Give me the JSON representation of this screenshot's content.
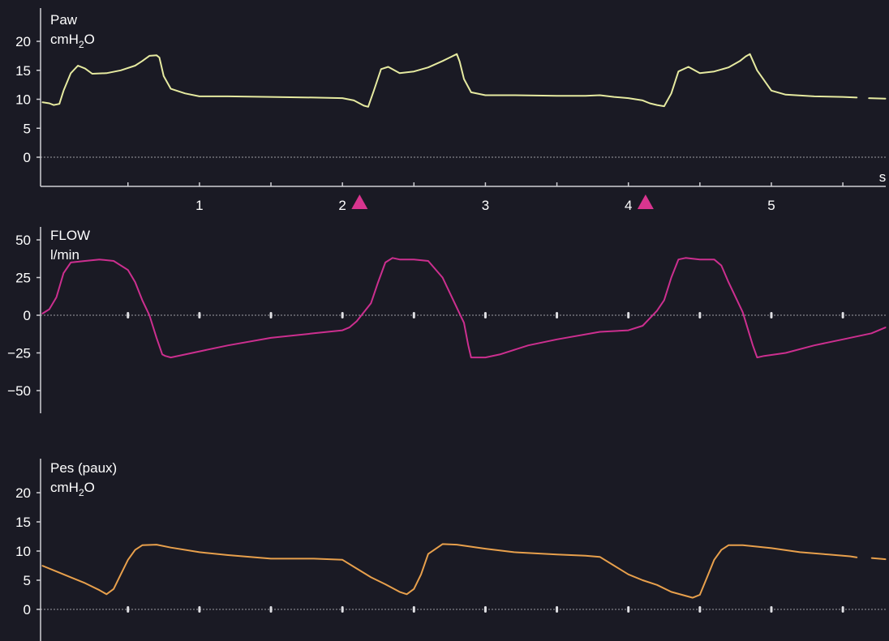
{
  "colors": {
    "background": "#1a1a24",
    "axis": "#cfcfd4",
    "paw": "#e6eaa0",
    "flow": "#cc2f8f",
    "pes": "#e8a04c",
    "marker": "#d9358f",
    "zero_line": "#bfbfc4"
  },
  "chart_data": [
    {
      "type": "line",
      "title_line1": "Paw",
      "unit_prefix": "cmH",
      "unit_sub": "2",
      "unit_suffix": "O",
      "ylim": [
        -5,
        22
      ],
      "yticks": [
        0,
        5,
        10,
        15,
        20
      ],
      "ytick_labels": [
        "0",
        "5",
        "10",
        "15",
        "20"
      ],
      "xlim": [
        -0.1,
        5.8
      ],
      "xticks": [
        1,
        2,
        3,
        4,
        5
      ],
      "xtick_labels": [
        "1",
        "2",
        "3",
        "4",
        "5"
      ],
      "xunit": "s",
      "markers_x": [
        2.12,
        4.12
      ],
      "series": [
        {
          "color_key": "paw",
          "x": [
            -0.1,
            -0.05,
            -0.02,
            0.02,
            0.05,
            0.1,
            0.15,
            0.2,
            0.25,
            0.35,
            0.45,
            0.55,
            0.6,
            0.65,
            0.7,
            0.72,
            0.75,
            0.8,
            0.9,
            1.0,
            1.2,
            1.5,
            1.8,
            2.0,
            2.08,
            2.15,
            2.18,
            2.22,
            2.27,
            2.32,
            2.4,
            2.5,
            2.6,
            2.7,
            2.75,
            2.8,
            2.82,
            2.85,
            2.9,
            3.0,
            3.2,
            3.5,
            3.7,
            3.8,
            3.9,
            4.0,
            4.1,
            4.15,
            4.2,
            4.25,
            4.3,
            4.35,
            4.42,
            4.5,
            4.6,
            4.7,
            4.78,
            4.82,
            4.85,
            4.9,
            5.0,
            5.1,
            5.3,
            5.5,
            5.6,
            5.65,
            5.68,
            5.8
          ],
          "y": [
            9.5,
            9.3,
            9.0,
            9.2,
            11.5,
            14.5,
            15.8,
            15.3,
            14.4,
            14.5,
            15.0,
            15.8,
            16.6,
            17.5,
            17.6,
            17.2,
            14.0,
            11.8,
            11.0,
            10.5,
            10.5,
            10.4,
            10.3,
            10.2,
            9.8,
            8.9,
            8.7,
            11.5,
            15.2,
            15.6,
            14.5,
            14.8,
            15.5,
            16.6,
            17.2,
            17.8,
            16.5,
            13.5,
            11.2,
            10.7,
            10.7,
            10.6,
            10.6,
            10.7,
            10.4,
            10.2,
            9.8,
            9.3,
            9.0,
            8.8,
            11.0,
            14.8,
            15.6,
            14.5,
            14.8,
            15.5,
            16.6,
            17.4,
            17.8,
            15.0,
            11.5,
            10.8,
            10.5,
            10.4,
            10.3,
            null,
            10.2,
            10.1
          ]
        }
      ]
    },
    {
      "type": "line",
      "title_line1": "FLOW",
      "unit": "l/min",
      "ylim": [
        -60,
        52
      ],
      "yticks": [
        -50,
        -25,
        0,
        25,
        50
      ],
      "ytick_labels": [
        "−50",
        "−25",
        "0",
        "25",
        "50"
      ],
      "xlim": [
        -0.1,
        5.8
      ],
      "xticks": [
        0.5,
        1,
        1.5,
        2,
        2.5,
        3,
        3.5,
        4,
        4.5,
        5,
        5.5
      ],
      "series": [
        {
          "color_key": "flow",
          "x": [
            -0.1,
            -0.05,
            0.0,
            0.05,
            0.1,
            0.2,
            0.3,
            0.4,
            0.5,
            0.55,
            0.6,
            0.65,
            0.7,
            0.74,
            0.76,
            0.8,
            0.9,
            1.0,
            1.2,
            1.5,
            1.8,
            2.0,
            2.05,
            2.1,
            2.15,
            2.2,
            2.25,
            2.3,
            2.35,
            2.4,
            2.5,
            2.6,
            2.7,
            2.75,
            2.8,
            2.85,
            2.88,
            2.9,
            3.0,
            3.1,
            3.3,
            3.5,
            3.8,
            4.0,
            4.1,
            4.15,
            4.2,
            4.25,
            4.3,
            4.35,
            4.4,
            4.5,
            4.6,
            4.65,
            4.7,
            4.75,
            4.8,
            4.87,
            4.9,
            4.95,
            5.1,
            5.3,
            5.5,
            5.7,
            5.8
          ],
          "y": [
            1,
            4,
            12,
            28,
            35,
            36,
            37,
            36,
            30,
            22,
            10,
            0,
            -15,
            -26,
            -27,
            -28,
            -26,
            -24,
            -20,
            -15,
            -12,
            -10,
            -8,
            -4,
            2,
            8,
            22,
            35,
            38,
            37,
            37,
            36,
            25,
            15,
            5,
            -5,
            -20,
            -28,
            -28,
            -26,
            -20,
            -16,
            -11,
            -10,
            -7,
            -2,
            3,
            10,
            25,
            37,
            38,
            37,
            37,
            33,
            22,
            12,
            2,
            -20,
            -28,
            -27,
            -25,
            -20,
            -16,
            -12,
            -8
          ]
        }
      ]
    },
    {
      "type": "line",
      "title_line1": "Pes (paux)",
      "unit_prefix": "cmH",
      "unit_sub": "2",
      "unit_suffix": "O",
      "ylim": [
        -5,
        25
      ],
      "yticks": [
        0,
        5,
        10,
        15,
        20
      ],
      "ytick_labels": [
        "0",
        "5",
        "10",
        "15",
        "20"
      ],
      "xlim": [
        -0.1,
        5.8
      ],
      "xticks": [
        0.5,
        1,
        1.5,
        2,
        2.5,
        3,
        3.5,
        4,
        4.5,
        5,
        5.5
      ],
      "series": [
        {
          "color_key": "pes",
          "x": [
            -0.1,
            0.0,
            0.1,
            0.2,
            0.3,
            0.35,
            0.4,
            0.45,
            0.5,
            0.55,
            0.6,
            0.7,
            0.8,
            1.0,
            1.2,
            1.5,
            1.8,
            2.0,
            2.1,
            2.2,
            2.3,
            2.4,
            2.45,
            2.5,
            2.55,
            2.6,
            2.7,
            2.8,
            3.0,
            3.2,
            3.5,
            3.7,
            3.8,
            3.9,
            4.0,
            4.1,
            4.2,
            4.3,
            4.45,
            4.5,
            4.55,
            4.6,
            4.65,
            4.7,
            4.8,
            5.0,
            5.2,
            5.4,
            5.55,
            5.6,
            5.65,
            5.7,
            5.8
          ],
          "y": [
            7.5,
            6.5,
            5.5,
            4.5,
            3.3,
            2.6,
            3.5,
            6.0,
            8.5,
            10.2,
            11.0,
            11.1,
            10.6,
            9.8,
            9.3,
            8.7,
            8.7,
            8.5,
            7.0,
            5.5,
            4.3,
            3.0,
            2.6,
            3.5,
            6.0,
            9.5,
            11.2,
            11.1,
            10.4,
            9.8,
            9.4,
            9.2,
            9.0,
            7.5,
            6.0,
            5.0,
            4.2,
            3.0,
            2.0,
            2.5,
            5.5,
            8.5,
            10.2,
            11.0,
            11.0,
            10.5,
            9.8,
            9.4,
            9.1,
            8.9,
            null,
            8.8,
            8.6
          ]
        }
      ]
    }
  ]
}
